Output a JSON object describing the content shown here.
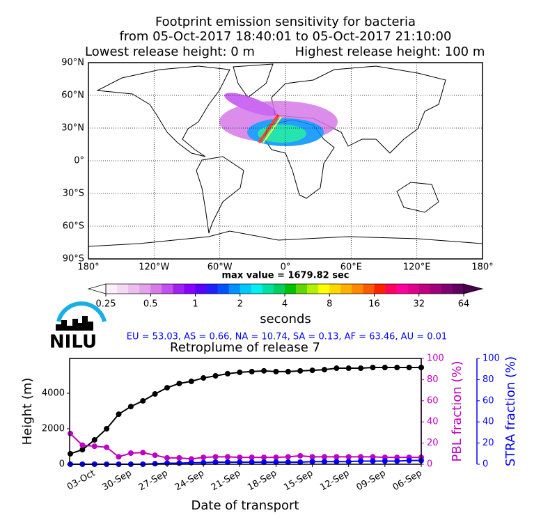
{
  "logo": "NILU",
  "region_fractions": "EU = 53.03,  AS = 0.66,  NA = 10.74,  SA = 0.13,  AF = 63.46,  AU = 0.01",
  "chart_data": [
    {
      "type": "map",
      "title": [
        "Footprint emission sensitivity for bacteria",
        "from 05-Oct-2017 18:40:01 to 05-Oct-2017 21:10:00"
      ],
      "subtitle": [
        "Lowest release height: 0 m",
        "Highest release height: 100 m"
      ],
      "xlim": [
        -180,
        180
      ],
      "xticks": [
        {
          "value": -180,
          "label": "180°"
        },
        {
          "value": -120,
          "label": "120°W"
        },
        {
          "value": -60,
          "label": "60°W"
        },
        {
          "value": 0,
          "label": "0°"
        },
        {
          "value": 60,
          "label": "60°E"
        },
        {
          "value": 120,
          "label": "120°E"
        },
        {
          "value": 180,
          "label": "180°"
        }
      ],
      "ylim": [
        -90,
        90
      ],
      "yticks": [
        {
          "value": 90,
          "label": "90°N"
        },
        {
          "value": 60,
          "label": "60°N"
        },
        {
          "value": 30,
          "label": "30°N"
        },
        {
          "value": 0,
          "label": "0°"
        },
        {
          "value": -30,
          "label": "30°S"
        },
        {
          "value": -60,
          "label": "60°S"
        },
        {
          "value": -90,
          "label": "90°S"
        }
      ],
      "grid": true,
      "annotation": "max value = 1679.82 sec"
    },
    {
      "type": "colorbar",
      "label": "seconds",
      "log_scale": true,
      "xlim": [
        0.25,
        64
      ],
      "xticks": [
        0.25,
        0.5,
        1,
        2,
        4,
        8,
        16,
        32,
        64
      ],
      "colors": [
        "#fbeffb",
        "#f5d9f5",
        "#ecbfef",
        "#e3a3ea",
        "#d67ae8",
        "#c34ff0",
        "#a020f0",
        "#8a00ff",
        "#5a00ff",
        "#2020ff",
        "#0050ff",
        "#0090ff",
        "#00c8ff",
        "#00f0f0",
        "#00e0a0",
        "#00d060",
        "#00c000",
        "#60d800",
        "#b0f000",
        "#ffff00",
        "#ffd800",
        "#ffb000",
        "#ff8800",
        "#ff5a00",
        "#ff2000",
        "#ff0060",
        "#ff00a0",
        "#e0008c",
        "#c00080",
        "#a00078",
        "#800070",
        "#600060"
      ],
      "under_color": "#ffffff",
      "over_color": "#4a004a"
    },
    {
      "type": "line",
      "title": "Retroplume of release 7",
      "x_label": "Date of transport",
      "y_label": "Height (m)",
      "y2_label": "PBL fraction (%)",
      "y3_label": "STRA fraction (%)",
      "categories": [
        null,
        null,
        "03-Oct",
        null,
        null,
        "30-Sep",
        null,
        null,
        "27-Sep",
        null,
        null,
        "24-Sep",
        null,
        null,
        "21-Sep",
        null,
        null,
        "18-Sep",
        null,
        null,
        "15-Sep",
        null,
        null,
        "12-Sep",
        null,
        null,
        "09-Sep",
        null,
        null,
        "06-Sep"
      ],
      "ylim": [
        0,
        5960
      ],
      "yticks": [
        0,
        2000,
        4000
      ],
      "y2lim": [
        0,
        100
      ],
      "y2ticks": [
        0,
        20,
        40,
        60,
        80,
        100
      ],
      "y2_color": "#bf00bf",
      "y3lim": [
        0,
        100
      ],
      "y3ticks": [
        0,
        20,
        40,
        60,
        80,
        100
      ],
      "y3_color": "#0000ff",
      "series": [
        {
          "name": "Height",
          "color": "#000000",
          "axis": "y",
          "values": [
            590,
            820,
            1370,
            2000,
            2820,
            3250,
            3570,
            3960,
            4310,
            4550,
            4670,
            4860,
            4980,
            5100,
            5180,
            5220,
            5260,
            5220,
            5220,
            5260,
            5290,
            5330,
            5410,
            5410,
            5410,
            5450,
            5450,
            5450,
            5450,
            5450
          ]
        },
        {
          "name": "PBL fraction",
          "color": "#bf00bf",
          "axis": "y2",
          "values": [
            29,
            18,
            17,
            16,
            7,
            10.5,
            11,
            8.5,
            6,
            6,
            5,
            6.5,
            7,
            7,
            6.5,
            6.5,
            6.5,
            6.5,
            7,
            8,
            7,
            7,
            7,
            7,
            7,
            7,
            6.5,
            6.5,
            6.5,
            6.5
          ]
        },
        {
          "name": "STRA fraction",
          "color": "#0000ff",
          "axis": "y3",
          "values": [
            0,
            0,
            0,
            0,
            0,
            0,
            0,
            0.5,
            1,
            1,
            1.5,
            1.5,
            2,
            2,
            2,
            2,
            2,
            2,
            2,
            2,
            2.5,
            2.5,
            2.5,
            2.5,
            3,
            3,
            3,
            3,
            3.5,
            3.5
          ]
        }
      ]
    }
  ]
}
